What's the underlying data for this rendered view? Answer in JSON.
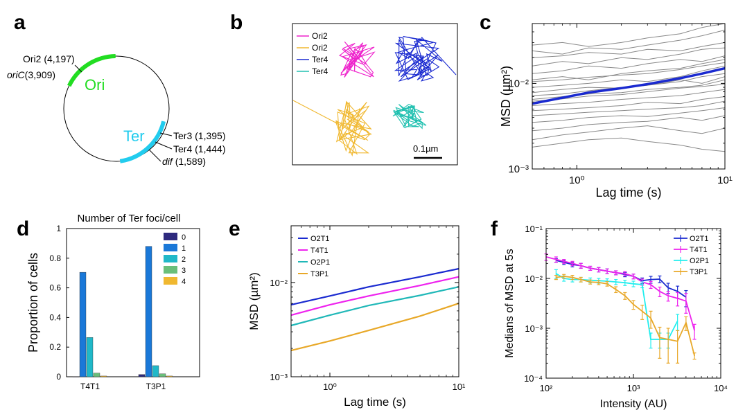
{
  "panels": {
    "a": {
      "letter": "a",
      "regions": [
        {
          "label": "Ori",
          "color": "#22dd22"
        },
        {
          "label": "Ter",
          "color": "#22ccee"
        }
      ],
      "loci": [
        {
          "name": "Ori2",
          "coord": "(4,197)",
          "italic": false
        },
        {
          "name": "oriC",
          "coord": "(3,909)",
          "italic": true
        },
        {
          "name": "Ter3",
          "coord": "(1,395)",
          "italic": false
        },
        {
          "name": "Ter4",
          "coord": "(1,444)",
          "italic": false
        },
        {
          "name": "dif",
          "coord": "(1,589)",
          "italic": true
        }
      ]
    },
    "b": {
      "letter": "b",
      "legend": [
        {
          "name": "Ori2",
          "color": "#ee22cc"
        },
        {
          "name": "Ori2",
          "color": "#f0b830"
        },
        {
          "name": "Ter4",
          "color": "#1a2ad0"
        },
        {
          "name": "Ter4",
          "color": "#20c0b0"
        }
      ],
      "scalebar": "0.1µm"
    },
    "c": {
      "letter": "c"
    },
    "d": {
      "letter": "d"
    },
    "e": {
      "letter": "e"
    },
    "f": {
      "letter": "f"
    }
  },
  "chart_data": [
    {
      "id": "c",
      "type": "line",
      "xlabel": "Lag time (s)",
      "ylabel": "MSD (µm²)",
      "xscale": "log",
      "yscale": "log",
      "xlim": [
        0.5,
        10
      ],
      "ylim": [
        0.001,
        0.05
      ],
      "xticks": [
        {
          "v": 1,
          "label": "10⁰"
        },
        {
          "v": 10,
          "label": "10¹"
        }
      ],
      "yticks": [
        {
          "v": 0.001,
          "label": "10⁻³"
        },
        {
          "v": 0.01,
          "label": "10⁻²"
        }
      ],
      "mean_color": "#1a2ad0",
      "trace_color": "#888888",
      "x": [
        0.5,
        0.8,
        1.2,
        2,
        3,
        5,
        7,
        10
      ],
      "series": [
        {
          "values": [
            0.0058,
            0.0068,
            0.0078,
            0.0088,
            0.0098,
            0.0115,
            0.013,
            0.015
          ],
          "mean": true
        },
        {
          "values": [
            0.028,
            0.03,
            0.027,
            0.03,
            0.034,
            0.038,
            0.045,
            0.05
          ]
        },
        {
          "values": [
            0.024,
            0.022,
            0.026,
            0.025,
            0.028,
            0.032,
            0.036,
            0.042
          ]
        },
        {
          "values": [
            0.02,
            0.021,
            0.023,
            0.022,
            0.025,
            0.024,
            0.027,
            0.03
          ]
        },
        {
          "values": [
            0.016,
            0.018,
            0.017,
            0.02,
            0.019,
            0.022,
            0.025,
            0.026
          ]
        },
        {
          "values": [
            0.013,
            0.014,
            0.016,
            0.015,
            0.017,
            0.019,
            0.018,
            0.021
          ]
        },
        {
          "values": [
            0.011,
            0.012,
            0.011,
            0.013,
            0.014,
            0.015,
            0.017,
            0.019
          ]
        },
        {
          "values": [
            0.009,
            0.0095,
            0.01,
            0.011,
            0.0105,
            0.012,
            0.014,
            0.016
          ]
        },
        {
          "values": [
            0.0078,
            0.0085,
            0.009,
            0.0088,
            0.0095,
            0.011,
            0.01,
            0.012
          ]
        },
        {
          "values": [
            0.0065,
            0.007,
            0.0075,
            0.0078,
            0.0085,
            0.009,
            0.0095,
            0.011
          ]
        },
        {
          "values": [
            0.0055,
            0.0058,
            0.006,
            0.0065,
            0.0068,
            0.0072,
            0.0078,
            0.0085
          ]
        },
        {
          "values": [
            0.0048,
            0.005,
            0.0052,
            0.0055,
            0.006,
            0.0058,
            0.0065,
            0.007
          ]
        },
        {
          "values": [
            0.0042,
            0.0044,
            0.0046,
            0.0048,
            0.005,
            0.0052,
            0.0055,
            0.0062
          ]
        },
        {
          "values": [
            0.0035,
            0.0037,
            0.004,
            0.0042,
            0.0041,
            0.0045,
            0.0048,
            0.0052
          ]
        },
        {
          "values": [
            0.0028,
            0.003,
            0.0033,
            0.0035,
            0.0036,
            0.004,
            0.0037,
            0.0042
          ]
        },
        {
          "values": [
            0.0022,
            0.0025,
            0.0027,
            0.003,
            0.0032,
            0.0028,
            0.0026,
            0.003
          ]
        },
        {
          "values": [
            0.0018,
            0.002,
            0.0022,
            0.0023,
            0.0021,
            0.0019,
            0.0017,
            0.0016
          ]
        },
        {
          "values": [
            0.0072,
            0.0075,
            0.0082,
            0.009,
            0.0095,
            0.0105,
            0.012,
            0.013
          ]
        },
        {
          "values": [
            0.0105,
            0.011,
            0.0118,
            0.0125,
            0.013,
            0.0145,
            0.016,
            0.0175
          ]
        },
        {
          "values": [
            0.0062,
            0.0066,
            0.0071,
            0.0074,
            0.008,
            0.0088,
            0.0092,
            0.0098
          ]
        }
      ]
    },
    {
      "id": "d",
      "type": "bar",
      "title": "Number of Ter foci/cell",
      "ylabel": "Proportion of cells",
      "ylim": [
        0,
        1
      ],
      "yticks": [
        0,
        0.2,
        0.4,
        0.6,
        0.8,
        1
      ],
      "categories": [
        "T4T1",
        "T3P1"
      ],
      "series": [
        {
          "name": "0",
          "color": "#2e2a7e",
          "values": [
            0.0,
            0.015
          ]
        },
        {
          "name": "1",
          "color": "#1a78d8",
          "values": [
            0.705,
            0.88
          ]
        },
        {
          "name": "2",
          "color": "#20b8c8",
          "values": [
            0.265,
            0.075
          ]
        },
        {
          "name": "3",
          "color": "#6abf7a",
          "values": [
            0.025,
            0.02
          ]
        },
        {
          "name": "4",
          "color": "#f0b830",
          "values": [
            0.005,
            0.005
          ]
        }
      ],
      "legend": "top-right"
    },
    {
      "id": "e",
      "type": "line",
      "xlabel": "Lag time (s)",
      "ylabel": "MSD (µm²)",
      "xscale": "log",
      "yscale": "log",
      "xlim": [
        0.5,
        10
      ],
      "ylim": [
        0.001,
        0.04
      ],
      "xticks": [
        {
          "v": 1,
          "label": "10⁰"
        },
        {
          "v": 10,
          "label": "10¹"
        }
      ],
      "yticks": [
        {
          "v": 0.001,
          "label": "10⁻³"
        },
        {
          "v": 0.01,
          "label": "10⁻²"
        }
      ],
      "x": [
        0.5,
        1,
        2,
        5,
        10
      ],
      "series": [
        {
          "name": "O2T1",
          "color": "#1a2ad0",
          "values": [
            0.0058,
            0.0072,
            0.009,
            0.0115,
            0.014
          ]
        },
        {
          "name": "T4T1",
          "color": "#ee22ee",
          "values": [
            0.0045,
            0.0058,
            0.0072,
            0.0093,
            0.0115
          ]
        },
        {
          "name": "O2P1",
          "color": "#20b8b8",
          "values": [
            0.0035,
            0.0045,
            0.0057,
            0.0073,
            0.009
          ]
        },
        {
          "name": "T3P1",
          "color": "#e8a828",
          "values": [
            0.0019,
            0.0024,
            0.0031,
            0.0044,
            0.006
          ]
        }
      ],
      "legend": "top-left"
    },
    {
      "id": "f",
      "type": "line",
      "xlabel": "Intensity (AU)",
      "ylabel": "Medians of MSD at 5s",
      "xscale": "log",
      "yscale": "log",
      "xlim": [
        100,
        10000
      ],
      "ylim": [
        0.0001,
        0.1
      ],
      "xticks": [
        {
          "v": 100,
          "label": "10²"
        },
        {
          "v": 1000,
          "label": "10³"
        },
        {
          "v": 10000,
          "label": "10⁴"
        }
      ],
      "yticks": [
        {
          "v": 0.0001,
          "label": "10⁻⁴"
        },
        {
          "v": 0.001,
          "label": "10⁻³"
        },
        {
          "v": 0.01,
          "label": "10⁻²"
        },
        {
          "v": 0.1,
          "label": "10⁻¹"
        }
      ],
      "series": [
        {
          "name": "O2T1",
          "color": "#1a2ad0",
          "x": [
            130,
            160,
            200,
            250,
            320,
            400,
            500,
            630,
            800,
            1000,
            1260,
            1580,
            2000,
            2500,
            3200,
            4000
          ],
          "values": [
            0.023,
            0.021,
            0.019,
            0.018,
            0.016,
            0.015,
            0.014,
            0.013,
            0.012,
            0.011,
            0.009,
            0.0095,
            0.0097,
            0.0065,
            0.0055,
            0.0042
          ],
          "err": [
            0.002,
            0.002,
            0.002,
            0.002,
            0.0015,
            0.0015,
            0.0015,
            0.0012,
            0.0012,
            0.0012,
            0.0012,
            0.0015,
            0.0015,
            0.0015,
            0.0015,
            0.0015
          ]
        },
        {
          "name": "T4T1",
          "color": "#ee22ee",
          "x": [
            100,
            130,
            160,
            200,
            250,
            320,
            400,
            500,
            630,
            800,
            1000,
            1260,
            1580,
            2000,
            2500,
            3200,
            4000,
            5000
          ],
          "values": [
            0.027,
            0.024,
            0.022,
            0.02,
            0.018,
            0.016,
            0.015,
            0.014,
            0.013,
            0.0125,
            0.011,
            0.0085,
            0.0075,
            0.0055,
            0.0045,
            0.004,
            0.0035,
            0.0009
          ],
          "err": [
            0.004,
            0.003,
            0.002,
            0.002,
            0.002,
            0.0015,
            0.0015,
            0.0015,
            0.0012,
            0.0012,
            0.0012,
            0.0012,
            0.0012,
            0.0012,
            0.001,
            0.0012,
            0.0015,
            0.0003
          ]
        },
        {
          "name": "O2P1",
          "color": "#22eeee",
          "x": [
            130,
            160,
            200,
            250,
            320,
            400,
            500,
            630,
            800,
            1000,
            1260,
            1580,
            2000,
            2500,
            3200
          ],
          "values": [
            0.0125,
            0.01,
            0.0095,
            0.0095,
            0.0092,
            0.009,
            0.0088,
            0.0085,
            0.0082,
            0.0078,
            0.0075,
            0.0006,
            0.0006,
            0.0006,
            0.0014
          ],
          "err": [
            0.0025,
            0.0012,
            0.001,
            0.001,
            0.001,
            0.001,
            0.001,
            0.001,
            0.001,
            0.001,
            0.001,
            0.0002,
            0.0002,
            0.0002,
            0.0005
          ]
        },
        {
          "name": "T3P1",
          "color": "#e8a828",
          "x": [
            130,
            160,
            200,
            250,
            320,
            400,
            500,
            630,
            800,
            1000,
            1260,
            1580,
            2000,
            2500,
            3200,
            4000,
            5000
          ],
          "values": [
            0.0105,
            0.011,
            0.0105,
            0.0095,
            0.0085,
            0.0083,
            0.0078,
            0.006,
            0.0045,
            0.003,
            0.0022,
            0.0016,
            0.00065,
            0.0006,
            0.00055,
            0.0013,
            0.00028
          ],
          "err": [
            0.001,
            0.001,
            0.001,
            0.001,
            0.0008,
            0.0008,
            0.0008,
            0.0008,
            0.0007,
            0.0006,
            0.0007,
            0.0006,
            0.0004,
            0.0004,
            0.00035,
            0.0004,
            4e-05
          ]
        }
      ],
      "legend": "top-right"
    }
  ]
}
